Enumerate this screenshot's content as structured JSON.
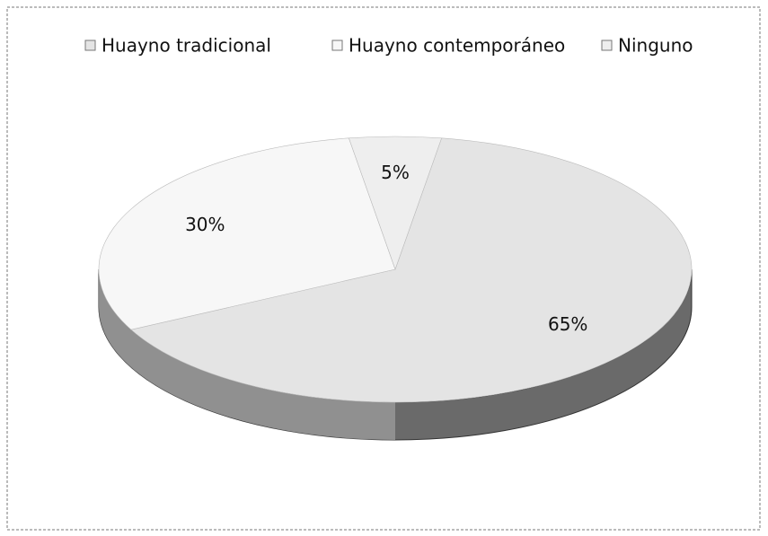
{
  "chart_data": {
    "type": "pie",
    "categories": [
      "Huayno tradicional",
      "Huayno contemporáneo",
      "Ninguno"
    ],
    "values": [
      65,
      30,
      5
    ],
    "value_labels": [
      "65%",
      "30%",
      "5%"
    ],
    "colors": [
      "#e4e4e4",
      "#f7f7f7",
      "#eeeeee"
    ],
    "legend": "top"
  }
}
